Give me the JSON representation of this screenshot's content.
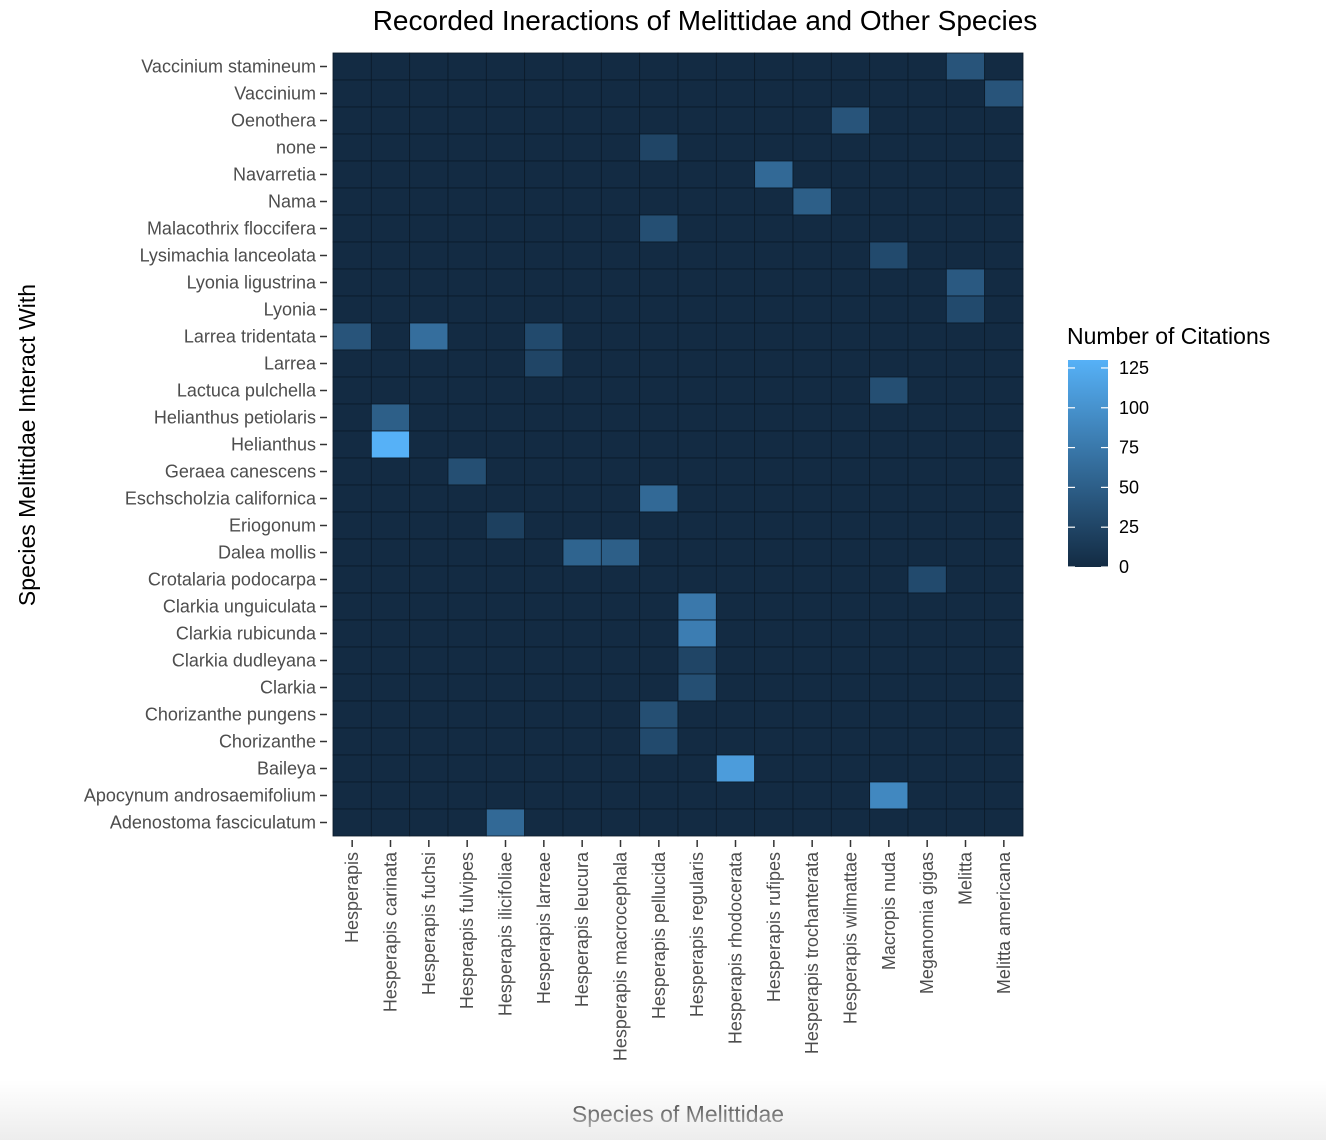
{
  "chart_data": {
    "type": "heatmap",
    "title": "Recorded Ineractions of Melittidae and Other Species",
    "xlabel": "Species of Melittidae",
    "ylabel": "Species Melittidae Interact With",
    "x": [
      "Hesperapis",
      "Hesperapis carinata",
      "Hesperapis fuchsi",
      "Hesperapis fulvipes",
      "Hesperapis ilicifoliae",
      "Hesperapis larreae",
      "Hesperapis leucura",
      "Hesperapis macrocephala",
      "Hesperapis pellucida",
      "Hesperapis regularis",
      "Hesperapis rhodocerata",
      "Hesperapis rufipes",
      "Hesperapis trochanterata",
      "Hesperapis wilmattae",
      "Macropis nuda",
      "Meganomia gigas",
      "Melitta",
      "Melitta americana"
    ],
    "y": [
      "Vaccinium stamineum",
      "Vaccinium",
      "Oenothera",
      "none",
      "Navarretia",
      "Nama",
      "Malacothrix floccifera",
      "Lysimachia lanceolata",
      "Lyonia ligustrina",
      "Lyonia",
      "Larrea tridentata",
      "Larrea",
      "Lactuca pulchella",
      "Helianthus petiolaris",
      "Helianthus",
      "Geraea canescens",
      "Eschscholzia californica",
      "Eriogonum",
      "Dalea mollis",
      "Crotalaria podocarpa",
      "Clarkia unguiculata",
      "Clarkia rubicunda",
      "Clarkia dudleyana",
      "Clarkia",
      "Chorizanthe pungens",
      "Chorizanthe",
      "Baileya",
      "Apocynum androsaemifolium",
      "Adenostoma fasciculatum"
    ],
    "cells": [
      {
        "x": "Melitta",
        "y": "Vaccinium stamineum",
        "value": 40
      },
      {
        "x": "Melitta americana",
        "y": "Vaccinium",
        "value": 40
      },
      {
        "x": "Hesperapis wilmattae",
        "y": "Oenothera",
        "value": 40
      },
      {
        "x": "Hesperapis pellucida",
        "y": "none",
        "value": 25
      },
      {
        "x": "Hesperapis rufipes",
        "y": "Navarretia",
        "value": 60
      },
      {
        "x": "Hesperapis trochanterata",
        "y": "Nama",
        "value": 50
      },
      {
        "x": "Hesperapis pellucida",
        "y": "Malacothrix floccifera",
        "value": 35
      },
      {
        "x": "Macropis nuda",
        "y": "Lysimachia lanceolata",
        "value": 30
      },
      {
        "x": "Melitta",
        "y": "Lyonia ligustrina",
        "value": 45
      },
      {
        "x": "Melitta",
        "y": "Lyonia",
        "value": 30
      },
      {
        "x": "Hesperapis",
        "y": "Larrea tridentata",
        "value": 40
      },
      {
        "x": "Hesperapis fuchsi",
        "y": "Larrea tridentata",
        "value": 65
      },
      {
        "x": "Hesperapis larreae",
        "y": "Larrea tridentata",
        "value": 30
      },
      {
        "x": "Hesperapis larreae",
        "y": "Larrea",
        "value": 25
      },
      {
        "x": "Macropis nuda",
        "y": "Lactuca pulchella",
        "value": 35
      },
      {
        "x": "Hesperapis carinata",
        "y": "Helianthus petiolaris",
        "value": 50
      },
      {
        "x": "Hesperapis carinata",
        "y": "Helianthus",
        "value": 130
      },
      {
        "x": "Hesperapis fulvipes",
        "y": "Geraea canescens",
        "value": 35
      },
      {
        "x": "Hesperapis pellucida",
        "y": "Eschscholzia californica",
        "value": 60
      },
      {
        "x": "Hesperapis ilicifoliae",
        "y": "Eriogonum",
        "value": 20
      },
      {
        "x": "Hesperapis leucura",
        "y": "Dalea mollis",
        "value": 55
      },
      {
        "x": "Hesperapis macrocephala",
        "y": "Dalea mollis",
        "value": 50
      },
      {
        "x": "Meganomia gigas",
        "y": "Crotalaria podocarpa",
        "value": 30
      },
      {
        "x": "Hesperapis regularis",
        "y": "Clarkia unguiculata",
        "value": 75
      },
      {
        "x": "Hesperapis regularis",
        "y": "Clarkia rubicunda",
        "value": 80
      },
      {
        "x": "Hesperapis regularis",
        "y": "Clarkia dudleyana",
        "value": 25
      },
      {
        "x": "Hesperapis regularis",
        "y": "Clarkia",
        "value": 35
      },
      {
        "x": "Hesperapis pellucida",
        "y": "Chorizanthe pungens",
        "value": 35
      },
      {
        "x": "Hesperapis pellucida",
        "y": "Chorizanthe",
        "value": 30
      },
      {
        "x": "Hesperapis rhodocerata",
        "y": "Baileya",
        "value": 110
      },
      {
        "x": "Macropis nuda",
        "y": "Apocynum androsaemifolium",
        "value": 90
      },
      {
        "x": "Hesperapis ilicifoliae",
        "y": "Adenostoma fasciculatum",
        "value": 60
      }
    ],
    "default_value": 0,
    "legend": {
      "title": "Number of Citations",
      "ticks": [
        0,
        25,
        50,
        75,
        100,
        125
      ],
      "range": [
        0,
        130
      ],
      "placement": "right"
    },
    "colors": {
      "low": "#132b43",
      "high": "#56b1f7"
    },
    "grid": true
  }
}
